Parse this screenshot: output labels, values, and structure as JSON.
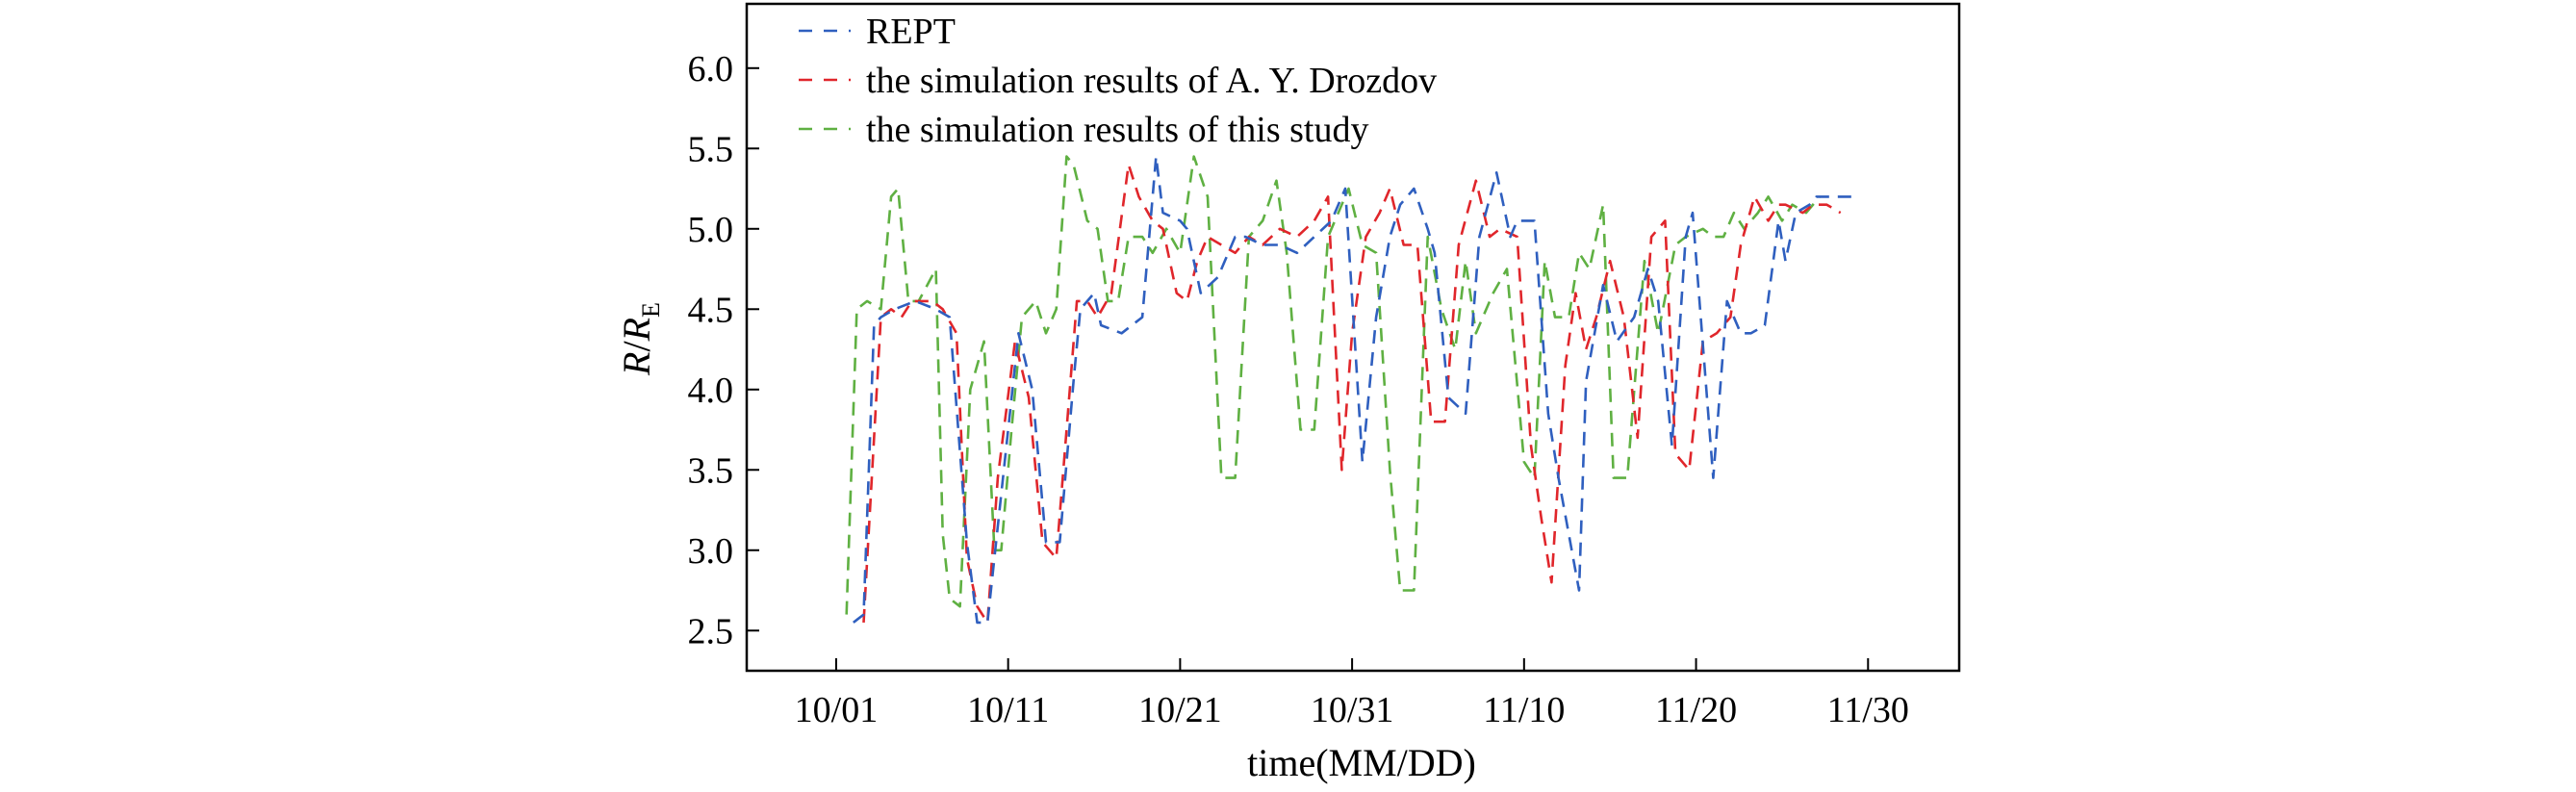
{
  "chart_data": {
    "type": "line",
    "title": "",
    "xlabel": "time(MM/DD)",
    "ylabel_main": "R",
    "ylabel_sep": "/",
    "ylabel_ratio": "R",
    "ylabel_sub": "E",
    "x_tick_labels": [
      "10/01",
      "10/11",
      "10/21",
      "10/31",
      "11/10",
      "11/20",
      "11/30"
    ],
    "x_tick_days": [
      0,
      10,
      20,
      30,
      40,
      50,
      60
    ],
    "y_ticks": [
      2.5,
      3.0,
      3.5,
      4.0,
      4.5,
      5.0,
      5.5,
      6.0
    ],
    "y_tick_labels": [
      "2.5",
      "3.0",
      "3.5",
      "4.0",
      "4.5",
      "5.0",
      "5.5",
      "6.0"
    ],
    "xlim": [
      -5.2,
      65.3
    ],
    "ylim": [
      2.25,
      6.4
    ],
    "grid": false,
    "legend_position": "top-left",
    "series": [
      {
        "name": "REPT",
        "color": "#2f5fbf",
        "x": [
          1.0,
          1.6,
          2.2,
          2.6,
          3.4,
          4.6,
          5.8,
          6.6,
          7.6,
          8.2,
          8.8,
          9.8,
          10.6,
          11.4,
          12.2,
          13.0,
          13.8,
          14.2,
          15.0,
          15.4,
          16.6,
          17.8,
          18.6,
          19.0,
          20.0,
          20.4,
          21.2,
          22.2,
          23.2,
          23.8,
          24.8,
          25.8,
          26.8,
          27.8,
          28.8,
          29.6,
          30.6,
          31.4,
          32.2,
          32.8,
          33.6,
          34.4,
          34.8,
          35.6,
          36.6,
          37.4,
          38.4,
          39.2,
          39.6,
          40.6,
          41.4,
          42.0,
          43.2,
          43.6,
          44.6,
          45.4,
          46.4,
          47.2,
          47.8,
          48.6,
          49.4,
          49.8,
          51.0,
          51.8,
          52.6,
          53.2,
          54.0,
          54.8,
          55.2,
          55.8,
          56.6,
          57.0,
          57.8,
          58.2,
          59.0,
          59.4
        ],
        "y": [
          2.55,
          2.6,
          4.4,
          4.45,
          4.5,
          4.55,
          4.5,
          4.45,
          3.05,
          2.55,
          2.55,
          3.55,
          4.35,
          4.0,
          3.05,
          3.05,
          4.05,
          4.5,
          4.6,
          4.4,
          4.35,
          4.45,
          5.45,
          5.1,
          5.05,
          5.0,
          4.6,
          4.7,
          4.95,
          4.95,
          4.9,
          4.9,
          4.85,
          4.95,
          5.05,
          5.25,
          3.55,
          4.45,
          4.95,
          5.15,
          5.25,
          5.0,
          4.85,
          3.95,
          3.85,
          4.95,
          5.35,
          4.95,
          5.05,
          5.05,
          3.85,
          3.45,
          2.75,
          4.05,
          4.65,
          4.3,
          4.45,
          4.75,
          4.55,
          3.65,
          4.95,
          5.1,
          3.45,
          4.55,
          4.35,
          4.35,
          4.4,
          5.05,
          4.8,
          5.1,
          5.15,
          5.2,
          5.2,
          5.2,
          5.2,
          5.2
        ]
      },
      {
        "name": "the simulation results of A. Y. Drozdov",
        "color": "#e0262b",
        "x": [
          1.6,
          2.6,
          3.2,
          3.8,
          4.4,
          5.6,
          6.2,
          7.0,
          7.6,
          8.2,
          8.8,
          9.4,
          10.4,
          11.2,
          12.0,
          12.8,
          13.4,
          14.0,
          14.6,
          15.2,
          16.0,
          17.0,
          17.6,
          18.4,
          19.0,
          19.8,
          20.4,
          21.0,
          21.6,
          22.4,
          23.2,
          24.0,
          24.8,
          25.8,
          26.8,
          27.8,
          28.6,
          29.4,
          30.0,
          30.8,
          31.6,
          32.2,
          33.0,
          33.8,
          34.6,
          35.4,
          36.2,
          37.2,
          38.0,
          38.6,
          39.6,
          40.4,
          41.0,
          41.6,
          42.4,
          43.0,
          43.6,
          44.2,
          45.0,
          45.8,
          46.6,
          47.4,
          48.2,
          48.8,
          49.6,
          50.4,
          51.2,
          52.0,
          52.6,
          53.4,
          54.2,
          54.8,
          55.2,
          56.2,
          56.8,
          57.6,
          58.4
        ],
        "y": [
          2.55,
          4.45,
          4.5,
          4.45,
          4.55,
          4.55,
          4.5,
          4.35,
          2.95,
          2.65,
          2.55,
          3.45,
          4.3,
          3.95,
          3.05,
          2.95,
          3.75,
          4.55,
          4.55,
          4.45,
          4.6,
          5.4,
          5.2,
          5.05,
          5.0,
          4.6,
          4.55,
          4.8,
          4.95,
          4.9,
          4.85,
          4.95,
          4.9,
          5.0,
          4.95,
          5.05,
          5.2,
          3.5,
          4.35,
          4.95,
          5.1,
          5.25,
          4.9,
          4.9,
          3.8,
          3.8,
          4.9,
          5.3,
          4.95,
          5.0,
          4.95,
          3.65,
          3.2,
          2.8,
          4.15,
          4.6,
          4.25,
          4.45,
          4.8,
          4.45,
          3.7,
          4.95,
          5.05,
          3.6,
          3.5,
          4.3,
          4.35,
          4.45,
          4.9,
          5.2,
          5.05,
          5.15,
          5.15,
          5.1,
          5.15,
          5.15,
          5.1
        ]
      },
      {
        "name": "the simulation results of this study",
        "color": "#5fb042",
        "x": [
          0.6,
          1.2,
          1.8,
          2.6,
          3.2,
          3.6,
          4.2,
          4.8,
          5.8,
          6.2,
          6.6,
          7.2,
          7.8,
          8.6,
          9.2,
          9.6,
          10.2,
          10.8,
          11.6,
          12.2,
          12.8,
          13.4,
          13.8,
          14.6,
          15.2,
          15.8,
          16.4,
          17.0,
          17.8,
          18.4,
          19.2,
          20.0,
          20.8,
          21.6,
          22.4,
          23.2,
          24.0,
          24.8,
          25.6,
          26.2,
          27.0,
          27.8,
          28.6,
          29.2,
          29.8,
          30.6,
          31.4,
          32.2,
          32.8,
          33.6,
          34.4,
          35.2,
          36.0,
          36.6,
          37.2,
          38.2,
          39.0,
          40.0,
          40.6,
          41.2,
          41.8,
          42.6,
          43.2,
          43.8,
          44.6,
          45.2,
          46.0,
          47.0,
          47.8,
          48.8,
          49.4,
          50.4,
          51.0,
          51.6,
          52.2,
          52.8,
          53.6,
          54.2,
          55.0,
          55.6,
          56.4,
          57.2
        ],
        "y": [
          2.6,
          4.5,
          4.55,
          4.5,
          5.2,
          5.25,
          4.55,
          4.55,
          4.75,
          3.1,
          2.7,
          2.65,
          4.0,
          4.3,
          3.0,
          3.0,
          3.75,
          4.45,
          4.55,
          4.35,
          4.5,
          5.45,
          5.4,
          5.05,
          5.0,
          4.55,
          4.55,
          4.95,
          4.95,
          4.85,
          5.0,
          4.85,
          5.45,
          5.2,
          3.45,
          3.45,
          4.95,
          5.05,
          5.3,
          4.85,
          3.75,
          3.75,
          4.95,
          5.1,
          5.25,
          4.9,
          4.85,
          3.5,
          2.75,
          2.75,
          4.95,
          4.5,
          4.25,
          4.8,
          4.35,
          4.6,
          4.75,
          3.55,
          3.45,
          4.8,
          4.45,
          4.45,
          4.85,
          4.75,
          5.15,
          3.45,
          3.45,
          4.8,
          4.35,
          4.9,
          4.95,
          5.0,
          4.95,
          4.95,
          5.1,
          5.0,
          5.1,
          5.2,
          5.05,
          5.15,
          5.1,
          5.2
        ]
      }
    ]
  }
}
